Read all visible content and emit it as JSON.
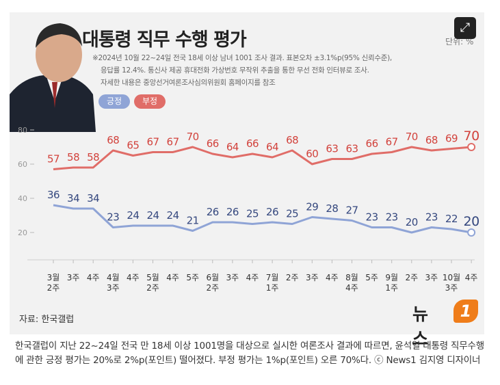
{
  "header": {
    "title": "대통령 직무 수행 평가",
    "unit": "단위: %",
    "notes": [
      "※2024년 10월 22~24일 전국 18세 이상 남녀 1001 조사 결과. 표본오차 ±3.1%p(95% 신뢰수준),",
      "응답률 12.4%. 통신사 제공 휴대전화 가상번호 무작위 추출을 통한 무선 전화 인터뷰로 조사.",
      "자세한 내용은 중앙선거여론조사심의위원회 홈페이지를 참조"
    ],
    "legend_positive": "긍정",
    "legend_negative": "부정"
  },
  "chart_data": {
    "type": "line",
    "y_ticks": [
      "80",
      "60",
      "40",
      "20"
    ],
    "ylim": [
      0,
      80
    ],
    "grid": false,
    "categories": [
      [
        "3월",
        "2주"
      ],
      [
        "3주"
      ],
      [
        "4주"
      ],
      [
        "4월",
        "3주"
      ],
      [
        "4주"
      ],
      [
        "5월",
        "2주"
      ],
      [
        "4주"
      ],
      [
        "5주"
      ],
      [
        "6월",
        "2주"
      ],
      [
        "3주"
      ],
      [
        "4주"
      ],
      [
        "7월",
        "1주"
      ],
      [
        "2주"
      ],
      [
        "3주"
      ],
      [
        "4주"
      ],
      [
        "8월",
        "4주"
      ],
      [
        "5주"
      ],
      [
        "9월",
        "1주"
      ],
      [
        "2주"
      ],
      [
        "3주"
      ],
      [
        "10월",
        "3주"
      ],
      [
        "4주"
      ]
    ],
    "series": [
      {
        "name": "긍정",
        "color": "#8fa4d6",
        "label_color": "#34477e",
        "values": [
          36,
          34,
          34,
          23,
          24,
          24,
          24,
          21,
          26,
          26,
          25,
          26,
          25,
          29,
          28,
          27,
          23,
          23,
          20,
          23,
          22,
          20
        ]
      },
      {
        "name": "부정",
        "color": "#e06d68",
        "label_color": "#d2423c",
        "values": [
          57,
          58,
          58,
          68,
          65,
          67,
          67,
          70,
          66,
          64,
          66,
          64,
          68,
          60,
          63,
          63,
          66,
          67,
          70,
          68,
          69,
          70
        ]
      }
    ]
  },
  "footer": {
    "source": "자료: 한국갤럽",
    "logo_text": "뉴스",
    "logo_mark": "1"
  },
  "caption": "한국갤럽이 지난 22~24일 전국 만 18세 이상 1001명을 대상으로 실시한 여론조사 결과에 따르면, 윤석열 대통령 직무수행에 관한 긍정 평가는 20%로 2%p(포인트) 떨어졌다. 부정 평가는 1%p(포인트) 오른 70%다. ⓒ News1 김지영 디자이너"
}
